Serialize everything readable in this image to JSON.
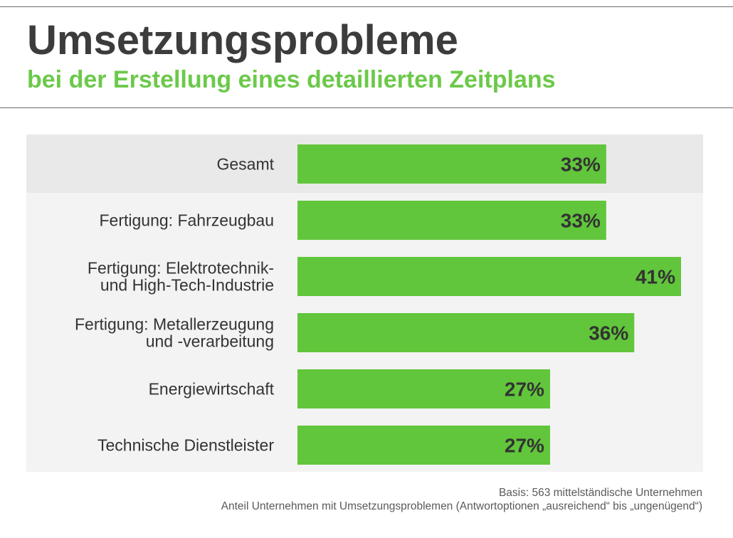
{
  "title": "Umsetzungsprobleme",
  "subtitle": "bei der Erstellung eines detaillierten Zeitplans",
  "footer": {
    "basis": "Basis: 563 mittelständische Unternehmen",
    "note": "Anteil Unternehmen mit Umsetzungsproblemen  (Antwortoptionen „ausreichend“ bis „ungenügend“)"
  },
  "colors": {
    "bar": "#61c63b",
    "title": "#3c3c3c",
    "subtitle": "#6cc94a",
    "panel": "#f3f3f3",
    "highlight_row": "#e9e9e9",
    "value_text": "#333333",
    "label_text": "#333333"
  },
  "chart_data": {
    "type": "bar",
    "orientation": "horizontal",
    "unit": "%",
    "xlim": [
      0,
      41
    ],
    "grid": false,
    "categories": [
      [
        "Gesamt"
      ],
      [
        "Fertigung: Fahrzeugbau"
      ],
      [
        "Fertigung: Elektrotechnik-",
        "und High-Tech-Industrie"
      ],
      [
        "Fertigung: Metallerzeugung",
        "und -verarbeitung"
      ],
      [
        "Energiewirtschaft"
      ],
      [
        "Technische Dienstleister"
      ]
    ],
    "values": [
      33,
      33,
      41,
      36,
      27,
      27
    ],
    "labels": [
      "33%",
      "33%",
      "41%",
      "36%",
      "27%",
      "27%"
    ]
  }
}
